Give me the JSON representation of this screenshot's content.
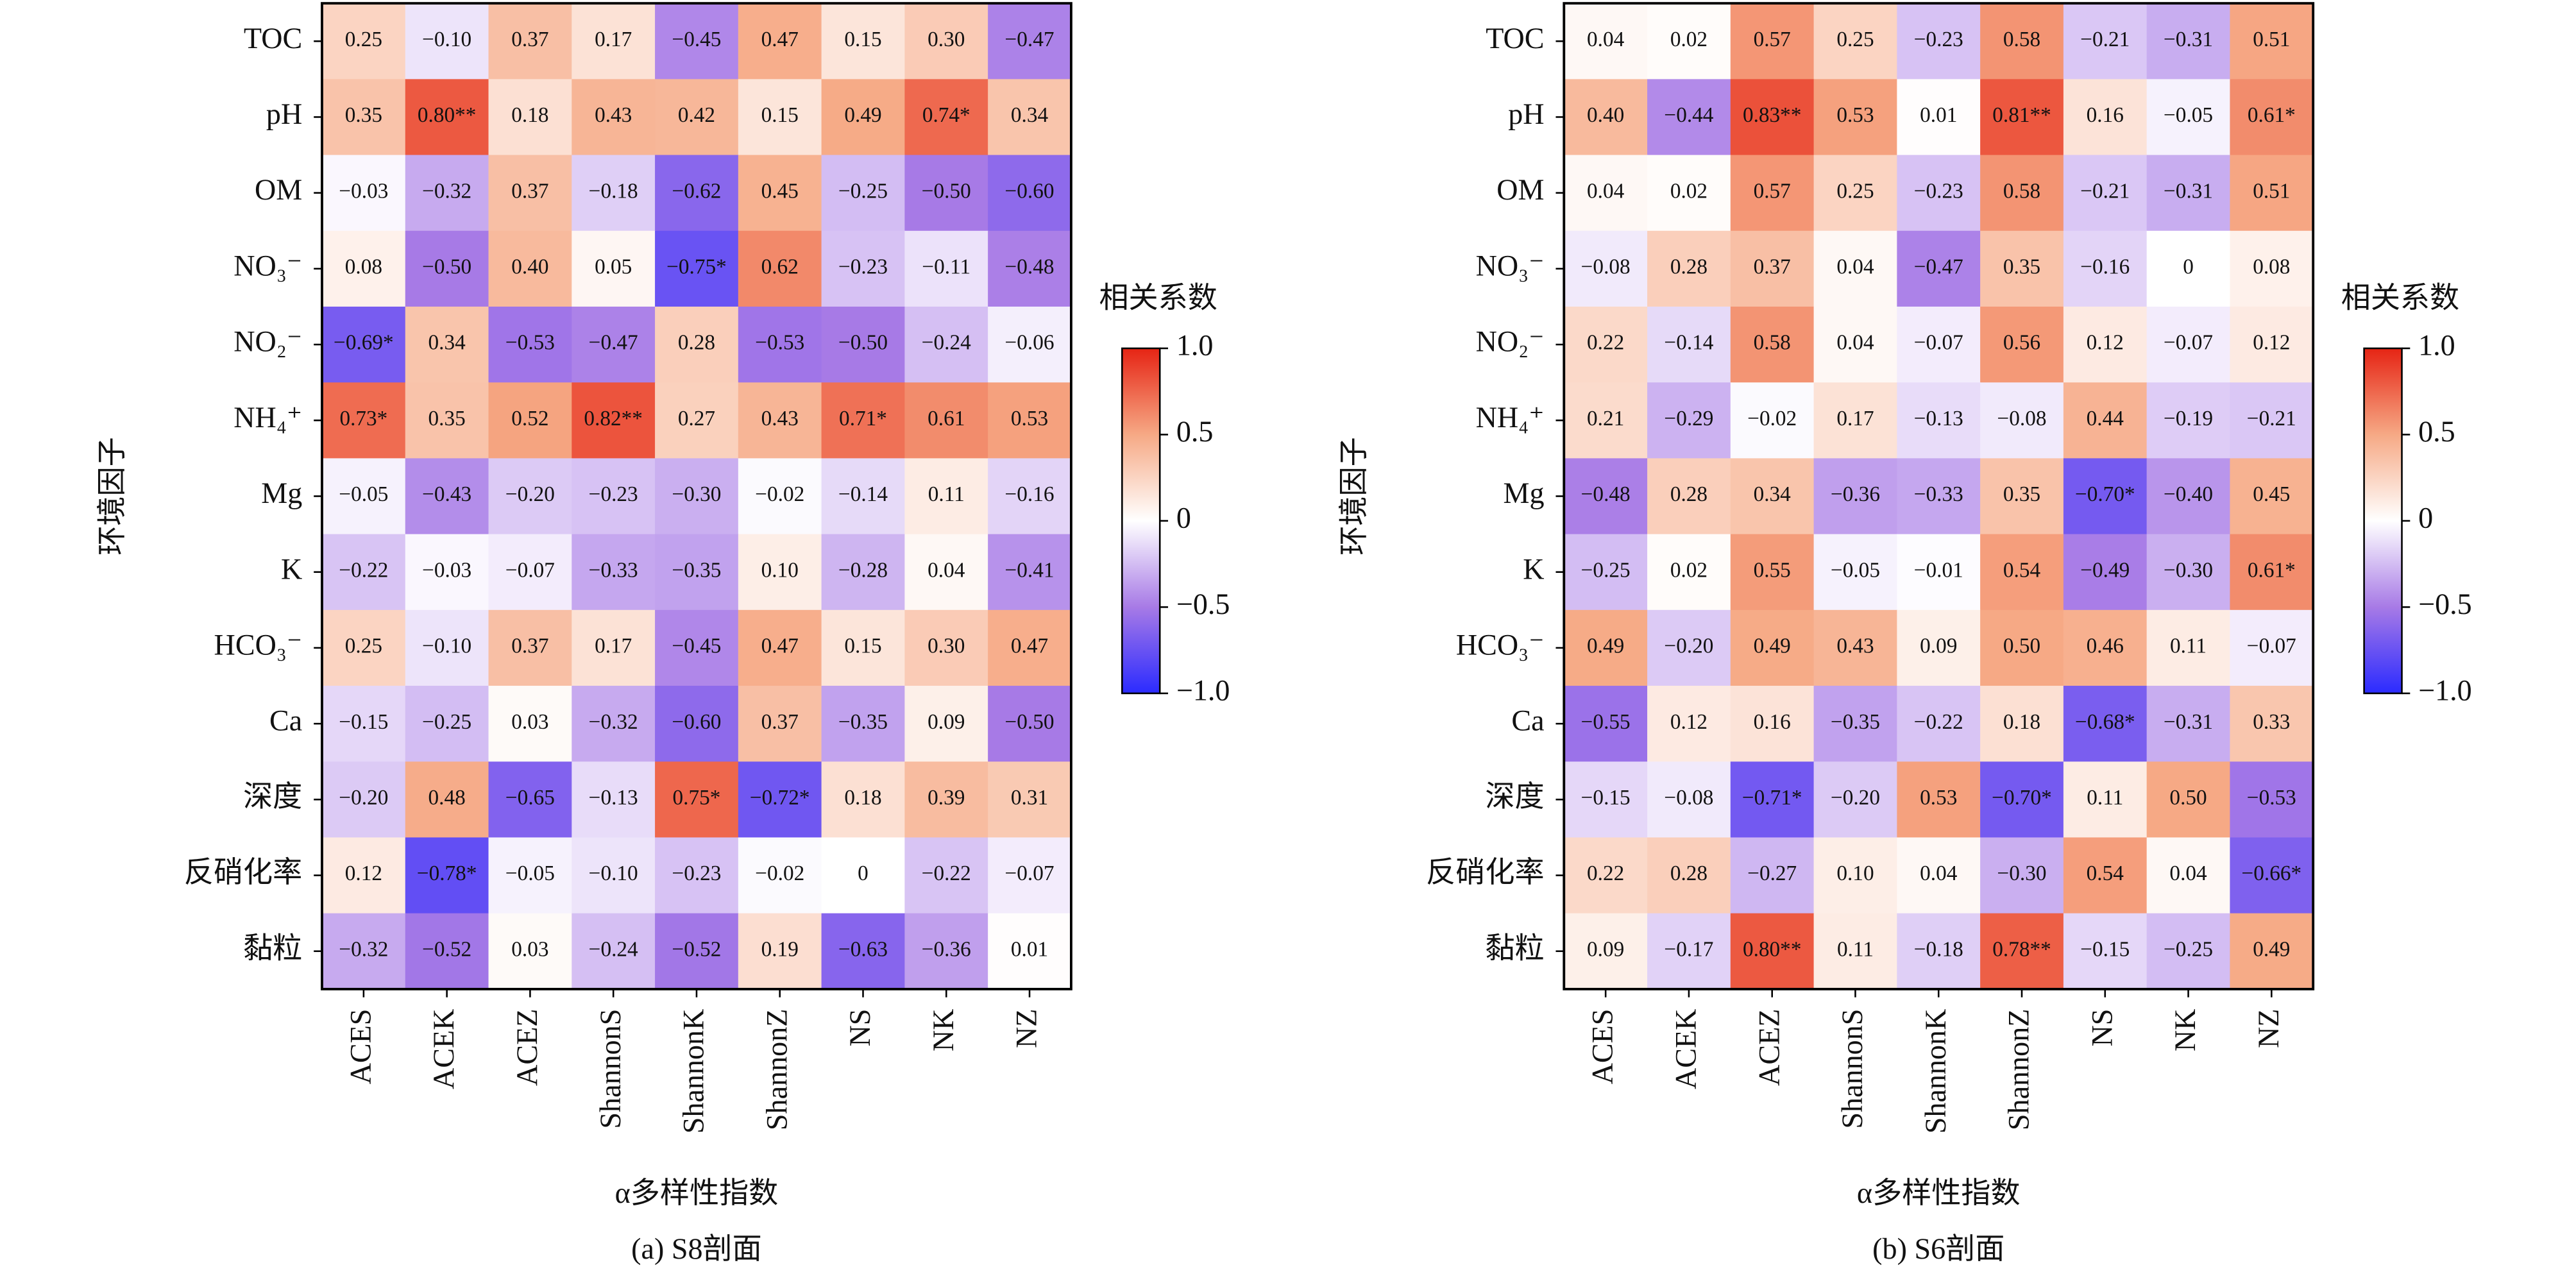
{
  "chart_data": [
    {
      "type": "heatmap",
      "caption": "(a) S8剖面",
      "x_label": "α多样性指数",
      "y_label": "环境因子",
      "categories": [
        "ACES",
        "ACEK",
        "ACEZ",
        "ShannonS",
        "ShannonK",
        "ShannonZ",
        "NS",
        "NK",
        "NZ"
      ],
      "rows": [
        "TOC",
        "pH",
        "OM",
        "NO₃⁻",
        "NO₂⁻",
        "NH₄⁺",
        "Mg",
        "K",
        "HCO₃⁻",
        "Ca",
        "深度",
        "反硝化率",
        "黏粒"
      ],
      "values": [
        [
          0.25,
          -0.1,
          0.37,
          0.17,
          -0.45,
          0.47,
          0.15,
          0.3,
          -0.47
        ],
        [
          0.35,
          0.8,
          0.18,
          0.43,
          0.42,
          0.15,
          0.49,
          0.74,
          0.34
        ],
        [
          -0.03,
          -0.32,
          0.37,
          -0.18,
          -0.62,
          0.45,
          -0.25,
          -0.5,
          -0.6
        ],
        [
          0.08,
          -0.5,
          0.4,
          0.05,
          -0.75,
          0.62,
          -0.23,
          -0.11,
          -0.48
        ],
        [
          -0.69,
          0.34,
          -0.53,
          -0.47,
          0.28,
          -0.53,
          -0.5,
          -0.24,
          -0.06
        ],
        [
          0.73,
          0.35,
          0.52,
          0.82,
          0.27,
          0.43,
          0.71,
          0.61,
          0.53
        ],
        [
          -0.05,
          -0.43,
          -0.2,
          -0.23,
          -0.3,
          -0.02,
          -0.14,
          0.11,
          -0.16
        ],
        [
          -0.22,
          -0.03,
          -0.07,
          -0.33,
          -0.35,
          0.1,
          -0.28,
          0.04,
          -0.41
        ],
        [
          0.25,
          -0.1,
          0.37,
          0.17,
          -0.45,
          0.47,
          0.15,
          0.3,
          0.47
        ],
        [
          -0.15,
          -0.25,
          0.03,
          -0.32,
          -0.6,
          0.37,
          -0.35,
          0.09,
          -0.5
        ],
        [
          -0.2,
          0.48,
          -0.65,
          -0.13,
          0.75,
          -0.72,
          0.18,
          0.39,
          0.31
        ],
        [
          0.12,
          -0.78,
          -0.05,
          -0.1,
          -0.23,
          -0.02,
          0,
          -0.22,
          -0.07
        ],
        [
          -0.32,
          -0.52,
          0.03,
          -0.24,
          -0.52,
          0.19,
          -0.63,
          -0.36,
          0.01
        ]
      ],
      "value_labels": [
        [
          "0.25",
          "−0.10",
          "0.37",
          "0.17",
          "−0.45",
          "0.47",
          "0.15",
          "0.30",
          "−0.47"
        ],
        [
          "0.35",
          "0.80**",
          "0.18",
          "0.43",
          "0.42",
          "0.15",
          "0.49",
          "0.74*",
          "0.34"
        ],
        [
          "−0.03",
          "−0.32",
          "0.37",
          "−0.18",
          "−0.62",
          "0.45",
          "−0.25",
          "−0.50",
          "−0.60"
        ],
        [
          "0.08",
          "−0.50",
          "0.40",
          "0.05",
          "−0.75*",
          "0.62",
          "−0.23",
          "−0.11",
          "−0.48"
        ],
        [
          "−0.69*",
          "0.34",
          "−0.53",
          "−0.47",
          "0.28",
          "−0.53",
          "−0.50",
          "−0.24",
          "−0.06"
        ],
        [
          "0.73*",
          "0.35",
          "0.52",
          "0.82**",
          "0.27",
          "0.43",
          "0.71*",
          "0.61",
          "0.53"
        ],
        [
          "−0.05",
          "−0.43",
          "−0.20",
          "−0.23",
          "−0.30",
          "−0.02",
          "−0.14",
          "0.11",
          "−0.16"
        ],
        [
          "−0.22",
          "−0.03",
          "−0.07",
          "−0.33",
          "−0.35",
          "0.10",
          "−0.28",
          "0.04",
          "−0.41"
        ],
        [
          "0.25",
          "−0.10",
          "0.37",
          "0.17",
          "−0.45",
          "0.47",
          "0.15",
          "0.30",
          "0.47"
        ],
        [
          "−0.15",
          "−0.25",
          "0.03",
          "−0.32",
          "−0.60",
          "0.37",
          "−0.35",
          "0.09",
          "−0.50"
        ],
        [
          "−0.20",
          "0.48",
          "−0.65",
          "−0.13",
          "0.75*",
          "−0.72*",
          "0.18",
          "0.39",
          "0.31"
        ],
        [
          "0.12",
          "−0.78*",
          "−0.05",
          "−0.10",
          "−0.23",
          "−0.02",
          "0",
          "−0.22",
          "−0.07"
        ],
        [
          "−0.32",
          "−0.52",
          "0.03",
          "−0.24",
          "−0.52",
          "0.19",
          "−0.63",
          "−0.36",
          "0.01"
        ]
      ],
      "colorbar_title": "相关系数",
      "clim": [
        -1,
        1
      ],
      "cticks": [
        {
          "value": -1,
          "label": "−1.0"
        },
        {
          "value": -0.5,
          "label": "−0.5"
        },
        0,
        0.5,
        {
          "value": 1,
          "label": "1.0"
        }
      ],
      "colormap": [
        "#2b2bff",
        "#a77ae6",
        "#ffffff",
        "#f6a985",
        "#e62414"
      ]
    },
    {
      "type": "heatmap",
      "caption": "(b) S6剖面",
      "x_label": "α多样性指数",
      "y_label": "环境因子",
      "categories": [
        "ACES",
        "ACEK",
        "ACEZ",
        "ShannonS",
        "ShannonK",
        "ShannonZ",
        "NS",
        "NK",
        "NZ"
      ],
      "rows": [
        "TOC",
        "pH",
        "OM",
        "NO₃⁻",
        "NO₂⁻",
        "NH₄⁺",
        "Mg",
        "K",
        "HCO₃⁻",
        "Ca",
        "深度",
        "反硝化率",
        "黏粒"
      ],
      "values": [
        [
          0.04,
          0.02,
          0.57,
          0.25,
          -0.23,
          0.58,
          -0.21,
          -0.31,
          0.51
        ],
        [
          0.4,
          -0.44,
          0.83,
          0.53,
          0.01,
          0.81,
          0.16,
          -0.05,
          0.61
        ],
        [
          0.04,
          0.02,
          0.57,
          0.25,
          -0.23,
          0.58,
          -0.21,
          -0.31,
          0.51
        ],
        [
          -0.08,
          0.28,
          0.37,
          0.04,
          -0.47,
          0.35,
          -0.16,
          0,
          0.08
        ],
        [
          0.22,
          -0.14,
          0.58,
          0.04,
          -0.07,
          0.56,
          0.12,
          -0.07,
          0.12
        ],
        [
          0.21,
          -0.29,
          -0.02,
          0.17,
          -0.13,
          -0.08,
          0.44,
          -0.19,
          -0.21
        ],
        [
          -0.48,
          0.28,
          0.34,
          -0.36,
          -0.33,
          0.35,
          -0.7,
          -0.4,
          0.45
        ],
        [
          -0.25,
          0.02,
          0.55,
          -0.05,
          -0.01,
          0.54,
          -0.49,
          -0.3,
          0.61
        ],
        [
          0.49,
          -0.2,
          0.49,
          0.43,
          0.09,
          0.5,
          0.46,
          0.11,
          -0.07
        ],
        [
          -0.55,
          0.12,
          0.16,
          -0.35,
          -0.22,
          0.18,
          -0.68,
          -0.31,
          0.33
        ],
        [
          -0.15,
          -0.08,
          -0.71,
          -0.2,
          0.53,
          -0.7,
          0.11,
          0.5,
          -0.53
        ],
        [
          0.22,
          0.28,
          -0.27,
          0.1,
          0.04,
          -0.3,
          0.54,
          0.04,
          -0.66
        ],
        [
          0.09,
          -0.17,
          0.8,
          0.11,
          -0.18,
          0.78,
          -0.15,
          -0.25,
          0.49
        ]
      ],
      "value_labels": [
        [
          "0.04",
          "0.02",
          "0.57",
          "0.25",
          "−0.23",
          "0.58",
          "−0.21",
          "−0.31",
          "0.51"
        ],
        [
          "0.40",
          "−0.44",
          "0.83**",
          "0.53",
          "0.01",
          "0.81**",
          "0.16",
          "−0.05",
          "0.61*"
        ],
        [
          "0.04",
          "0.02",
          "0.57",
          "0.25",
          "−0.23",
          "0.58",
          "−0.21",
          "−0.31",
          "0.51"
        ],
        [
          "−0.08",
          "0.28",
          "0.37",
          "0.04",
          "−0.47",
          "0.35",
          "−0.16",
          "0",
          "0.08"
        ],
        [
          "0.22",
          "−0.14",
          "0.58",
          "0.04",
          "−0.07",
          "0.56",
          "0.12",
          "−0.07",
          "0.12"
        ],
        [
          "0.21",
          "−0.29",
          "−0.02",
          "0.17",
          "−0.13",
          "−0.08",
          "0.44",
          "−0.19",
          "−0.21"
        ],
        [
          "−0.48",
          "0.28",
          "0.34",
          "−0.36",
          "−0.33",
          "0.35",
          "−0.70*",
          "−0.40",
          "0.45"
        ],
        [
          "−0.25",
          "0.02",
          "0.55",
          "−0.05",
          "−0.01",
          "0.54",
          "−0.49",
          "−0.30",
          "0.61*"
        ],
        [
          "0.49",
          "−0.20",
          "0.49",
          "0.43",
          "0.09",
          "0.50",
          "0.46",
          "0.11",
          "−0.07"
        ],
        [
          "−0.55",
          "0.12",
          "0.16",
          "−0.35",
          "−0.22",
          "0.18",
          "−0.68*",
          "−0.31",
          "0.33"
        ],
        [
          "−0.15",
          "−0.08",
          "−0.71*",
          "−0.20",
          "0.53",
          "−0.70*",
          "0.11",
          "0.50",
          "−0.53"
        ],
        [
          "0.22",
          "0.28",
          "−0.27",
          "0.10",
          "0.04",
          "−0.30",
          "0.54",
          "0.04",
          "−0.66*"
        ],
        [
          "0.09",
          "−0.17",
          "0.80**",
          "0.11",
          "−0.18",
          "0.78**",
          "−0.15",
          "−0.25",
          "0.49"
        ]
      ],
      "colorbar_title": "相关系数",
      "clim": [
        -1,
        1
      ],
      "cticks": [
        {
          "value": -1,
          "label": "−1.0"
        },
        {
          "value": -0.5,
          "label": "−0.5"
        },
        0,
        0.5,
        {
          "value": 1,
          "label": "1.0"
        }
      ],
      "colormap": [
        "#2b2bff",
        "#a77ae6",
        "#ffffff",
        "#f6a985",
        "#e62414"
      ]
    }
  ]
}
